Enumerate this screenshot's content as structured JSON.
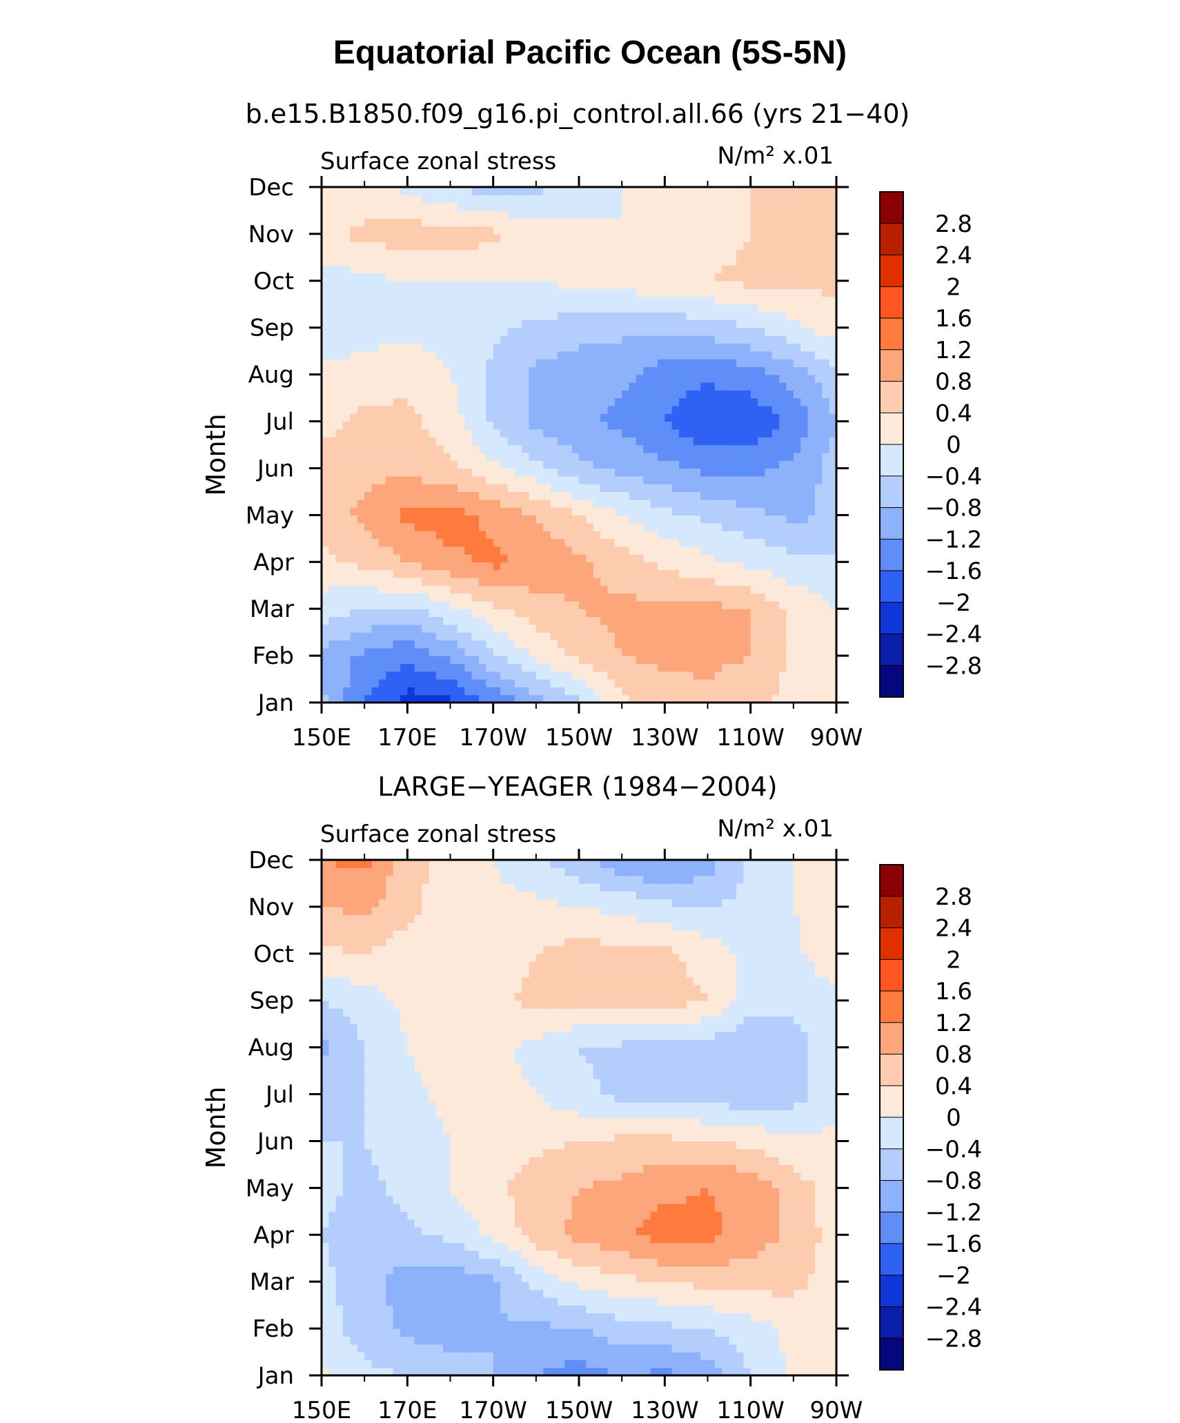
{
  "chart_data": {
    "type": "heatmap",
    "title": "Equatorial Pacific Ocean (5S-5N)",
    "colorbar": {
      "labels": [
        "2.8",
        "2.4",
        "2",
        "1.6",
        "1.2",
        "0.8",
        "0.4",
        "0",
        "−0.4",
        "−0.8",
        "−1.2",
        "−1.6",
        "−2",
        "−2.4",
        "−2.8"
      ],
      "colors": [
        "#8b0000",
        "#b82000",
        "#e03000",
        "#ff5522",
        "#ff7a3d",
        "#fda57b",
        "#fdcbad",
        "#fde9d9",
        "#d6e8fc",
        "#b3cdfc",
        "#8db1fb",
        "#5f8ef8",
        "#2f62f4",
        "#0f36d6",
        "#0a1ea8",
        "#05087a"
      ]
    },
    "panels": [
      {
        "subtitle": "b.e15.B1850.f09_g16.pi_control.all.66 (yrs 21−40)",
        "left_label": "Surface zonal stress",
        "units": "N/m² x.01",
        "ylabel": "Month",
        "xticks": [
          "150E",
          "170E",
          "170W",
          "150W",
          "130W",
          "110W",
          "90W"
        ],
        "yticks": [
          "Jan",
          "Feb",
          "Mar",
          "Apr",
          "May",
          "Jun",
          "Jul",
          "Aug",
          "Sep",
          "Oct",
          "Nov",
          "Dec"
        ],
        "xlim": [
          150,
          270
        ],
        "grid": [
          [
            -0.7,
            -1.6,
            -2.2,
            -2.1,
            -1.5,
            -1.0,
            -0.5,
            0.3,
            0.6,
            0.7,
            0.5,
            0.3,
            0.1
          ],
          [
            -0.9,
            -1.3,
            -1.5,
            -1.1,
            -0.5,
            0.1,
            0.5,
            0.8,
            0.9,
            0.9,
            0.8,
            0.3,
            0.1
          ],
          [
            -0.2,
            -0.4,
            -0.5,
            -0.1,
            0.3,
            0.6,
            0.8,
            0.9,
            0.9,
            0.9,
            0.8,
            0.3,
            0.0
          ],
          [
            0.3,
            0.5,
            0.8,
            1.1,
            1.3,
            1.1,
            0.9,
            0.6,
            0.3,
            0.1,
            -0.1,
            -0.3,
            -0.3
          ],
          [
            0.6,
            0.9,
            1.3,
            1.4,
            1.1,
            0.8,
            0.4,
            0.0,
            -0.3,
            -0.5,
            -0.7,
            -0.9,
            -0.7
          ],
          [
            0.5,
            0.7,
            0.7,
            0.5,
            0.1,
            -0.3,
            -0.7,
            -0.9,
            -1.1,
            -1.3,
            -1.3,
            -1.1,
            -0.6
          ],
          [
            0.3,
            0.5,
            0.5,
            0.2,
            -0.5,
            -0.9,
            -1.1,
            -1.3,
            -1.6,
            -2.0,
            -1.9,
            -1.5,
            -0.8
          ],
          [
            0.1,
            0.2,
            0.3,
            0.0,
            -0.5,
            -0.9,
            -1.1,
            -1.1,
            -1.4,
            -1.5,
            -1.4,
            -1.0,
            -0.5
          ],
          [
            -0.3,
            -0.2,
            -0.1,
            -0.2,
            -0.3,
            -0.5,
            -0.6,
            -0.7,
            -0.7,
            -0.6,
            -0.4,
            -0.1,
            0.2
          ],
          [
            -0.2,
            -0.1,
            0.0,
            0.0,
            0.0,
            0.0,
            0.1,
            0.2,
            0.3,
            0.4,
            0.5,
            0.5,
            0.5
          ],
          [
            0.3,
            0.5,
            0.6,
            0.6,
            0.5,
            0.2,
            0.1,
            0.0,
            0.1,
            0.2,
            0.4,
            0.6,
            0.6
          ],
          [
            0.2,
            0.1,
            -0.1,
            -0.4,
            -0.6,
            -0.5,
            -0.2,
            0.0,
            0.2,
            0.3,
            0.4,
            0.5,
            0.6
          ]
        ]
      },
      {
        "subtitle": "LARGE−YEAGER (1984−2004)",
        "left_label": "Surface zonal stress",
        "units": "N/m² x.01",
        "ylabel": "Month",
        "xticks": [
          "150E",
          "170E",
          "170W",
          "150W",
          "130W",
          "110W",
          "90W"
        ],
        "yticks": [
          "Jan",
          "Feb",
          "Mar",
          "Apr",
          "May",
          "Jun",
          "Jul",
          "Aug",
          "Sep",
          "Oct",
          "Nov",
          "Dec"
        ],
        "xlim": [
          150,
          270
        ],
        "grid": [
          [
            0.1,
            -0.3,
            -0.4,
            -0.6,
            -0.8,
            -1.2,
            -1.4,
            -1.2,
            -1.3,
            -1.0,
            -0.4,
            0.1,
            0.2
          ],
          [
            -0.2,
            -0.6,
            -0.9,
            -1.0,
            -0.8,
            -0.9,
            -0.8,
            -0.6,
            -0.5,
            -0.4,
            -0.2,
            0.1,
            0.3
          ],
          [
            -0.3,
            -0.6,
            -1.0,
            -1.1,
            -0.9,
            -0.3,
            0.1,
            0.3,
            0.4,
            0.5,
            0.6,
            0.5,
            0.2
          ],
          [
            -0.4,
            -0.6,
            -0.5,
            -0.3,
            0.1,
            0.6,
            0.9,
            1.1,
            1.4,
            1.3,
            1.0,
            0.7,
            0.2
          ],
          [
            -0.3,
            -0.5,
            -0.3,
            0.0,
            0.3,
            0.6,
            0.8,
            0.9,
            1.1,
            1.2,
            1.1,
            0.6,
            0.2
          ],
          [
            -0.4,
            -0.4,
            -0.2,
            0.0,
            0.1,
            0.3,
            0.4,
            0.5,
            0.5,
            0.4,
            0.3,
            0.1,
            0.1
          ],
          [
            -0.5,
            -0.4,
            -0.1,
            0.1,
            0.1,
            0.0,
            -0.3,
            -0.5,
            -0.5,
            -0.6,
            -0.7,
            -0.6,
            -0.1
          ],
          [
            -0.9,
            -0.4,
            0.0,
            0.2,
            0.1,
            -0.1,
            -0.4,
            -0.5,
            -0.5,
            -0.6,
            -0.8,
            -0.6,
            -0.1
          ],
          [
            -0.4,
            -0.2,
            0.1,
            0.2,
            0.3,
            0.5,
            0.5,
            0.7,
            0.6,
            0.4,
            -0.2,
            -0.3,
            -0.1
          ],
          [
            0.3,
            0.4,
            0.2,
            0.2,
            0.2,
            0.4,
            0.6,
            0.5,
            0.5,
            0.2,
            -0.1,
            -0.1,
            0.3
          ],
          [
            0.8,
            0.9,
            0.5,
            0.2,
            0.1,
            0.1,
            0.0,
            -0.1,
            -0.3,
            -0.4,
            -0.3,
            0.0,
            0.1
          ],
          [
            1.2,
            1.3,
            0.6,
            0.2,
            0.0,
            -0.3,
            -0.7,
            -1.1,
            -1.3,
            -1.0,
            -0.3,
            0.0,
            0.0
          ]
        ]
      }
    ]
  }
}
